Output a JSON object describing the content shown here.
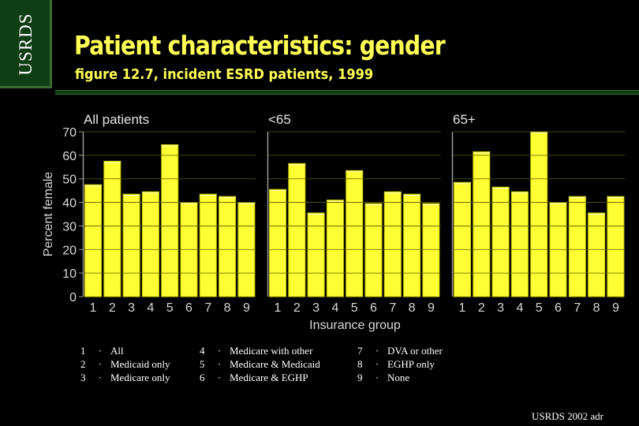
{
  "brand": "USRDS",
  "title": "Patient characteristics: gender",
  "subtitle": "figure 12.7, incident ESRD patients, 1999",
  "footer": "USRDS 2002 adr",
  "colors": {
    "bar": "#ffff33",
    "bar_outline": "#c8c800",
    "background": "#000000",
    "title": "#ffff55",
    "tab": "#0f3d14"
  },
  "chart_data": {
    "type": "bar",
    "ylabel": "Percent female",
    "xlabel": "Insurance group",
    "ylim": [
      0,
      70
    ],
    "yticks": [
      0,
      10,
      20,
      30,
      40,
      50,
      60,
      70
    ],
    "categories": [
      "1",
      "2",
      "3",
      "4",
      "5",
      "6",
      "7",
      "8",
      "9"
    ],
    "panels": [
      {
        "name": "All patients",
        "values": [
          47.5,
          57.5,
          43.5,
          44.5,
          64.5,
          40,
          43.5,
          42.5,
          40
        ]
      },
      {
        "name": "<65",
        "values": [
          45.5,
          56.5,
          35.5,
          41,
          53.5,
          39.5,
          44.5,
          43.5,
          39.5
        ]
      },
      {
        "name": "65+",
        "values": [
          48.5,
          61.5,
          46.5,
          44.5,
          70,
          40,
          42.5,
          35.5,
          42.5
        ]
      }
    ]
  },
  "legend": [
    [
      {
        "num": "1",
        "dot": "·",
        "label": "All"
      },
      {
        "num": "2",
        "dot": "·",
        "label": "Medicaid only"
      },
      {
        "num": "3",
        "dot": "·",
        "label": "Medicare only"
      }
    ],
    [
      {
        "num": "4",
        "dot": "·",
        "label": "Medicare with other"
      },
      {
        "num": "5",
        "dot": "·",
        "label": "Medicare & Medicaid"
      },
      {
        "num": "6",
        "dot": "·",
        "label": "Medicare & EGHP"
      }
    ],
    [
      {
        "num": "7",
        "dot": "·",
        "label": "DVA or other"
      },
      {
        "num": "8",
        "dot": "·",
        "label": "EGHP only"
      },
      {
        "num": "9",
        "dot": "·",
        "label": "None"
      }
    ]
  ]
}
